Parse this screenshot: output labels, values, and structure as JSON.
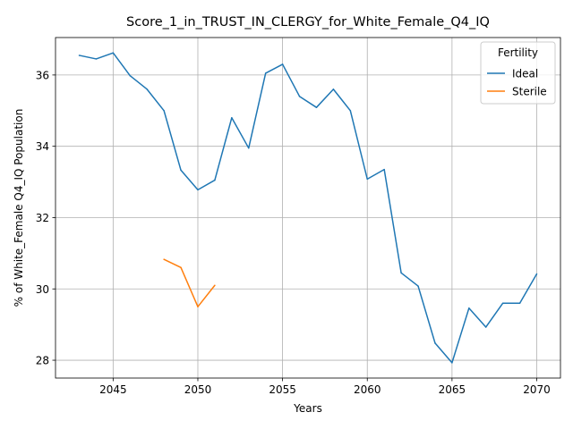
{
  "chart_data": {
    "type": "line",
    "title": "Score_1_in_TRUST_IN_CLERGY_for_White_Female_Q4_IQ",
    "xlabel": "Years",
    "ylabel": "% of White_Female Q4_IQ Population",
    "xlim": [
      2041.6,
      2071.4
    ],
    "ylim": [
      27.5,
      37.05
    ],
    "xticks": [
      2045,
      2050,
      2055,
      2060,
      2065,
      2070
    ],
    "yticks": [
      28,
      30,
      32,
      34,
      36
    ],
    "grid": true,
    "legend": {
      "title": "Fertility",
      "placement": "top-right"
    },
    "series": [
      {
        "name": "Ideal",
        "color": "#1f77b4",
        "x": [
          2043,
          2044,
          2045,
          2046,
          2047,
          2048,
          2049,
          2050,
          2051,
          2052,
          2053,
          2054,
          2055,
          2056,
          2057,
          2058,
          2059,
          2060,
          2061,
          2062,
          2063,
          2064,
          2065,
          2066,
          2067,
          2068,
          2069,
          2070
        ],
        "values": [
          36.55,
          36.45,
          36.62,
          35.98,
          35.6,
          35.0,
          33.33,
          32.78,
          33.05,
          34.8,
          33.95,
          36.05,
          36.3,
          35.4,
          35.09,
          35.6,
          35.0,
          33.08,
          33.35,
          30.45,
          30.08,
          28.48,
          27.93,
          29.46,
          28.93,
          29.6,
          29.6,
          30.42
        ]
      },
      {
        "name": "Sterile",
        "color": "#ff7f0e",
        "x": [
          2048,
          2049,
          2050,
          2051
        ],
        "values": [
          30.83,
          30.6,
          29.5,
          30.1
        ]
      }
    ]
  }
}
